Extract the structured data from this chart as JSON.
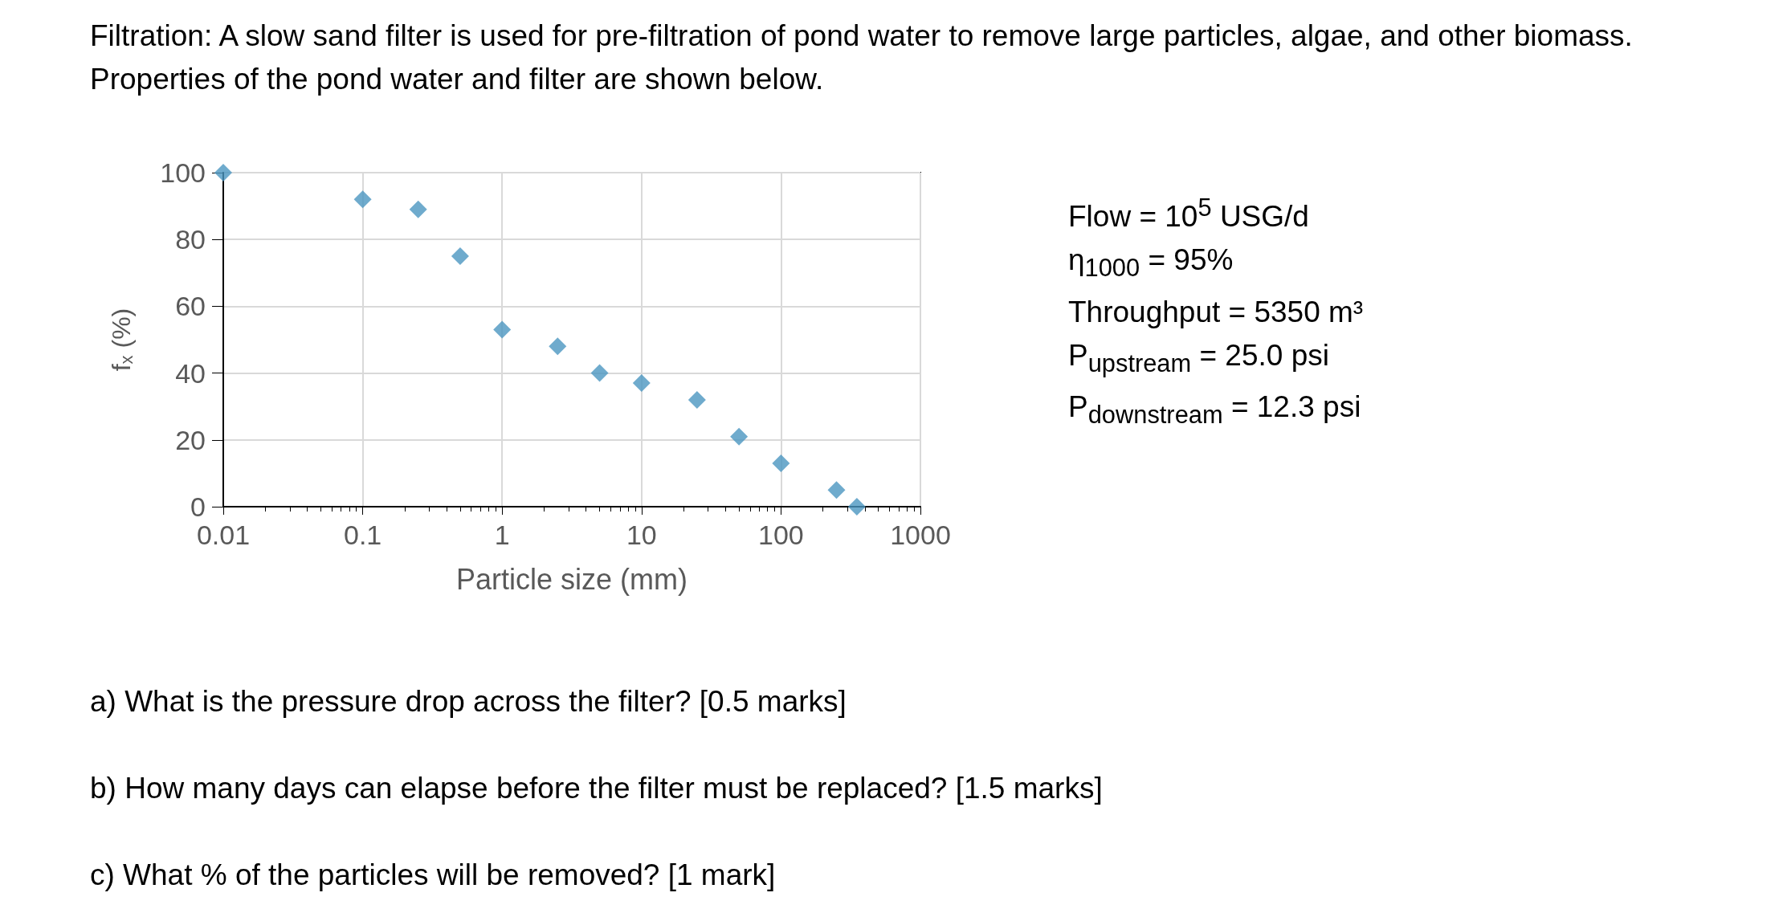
{
  "chart_data": {
    "type": "scatter",
    "title": "Filtration: A slow sand filter is used for pre-filtration of pond water to remove large particles, algae, and other biomass. Properties of the pond water and filter are shown below.",
    "xlabel": "Particle size (mm)",
    "ylabel": "f$_{x}$ (%)",
    "x": [
      0.01,
      0.1,
      0.25,
      0.5,
      1,
      2.5,
      5,
      10,
      25,
      50,
      100,
      250,
      350
    ],
    "series": [
      {
        "color": "#4b96c0",
        "values": [
          100,
          92,
          89,
          75,
          53,
          48,
          40,
          37,
          32,
          21,
          13,
          5,
          0
        ]
      }
    ],
    "log": "x",
    "xlim": [
      0.01,
      1000
    ],
    "xticks": [
      0.01,
      0.1,
      1,
      10,
      100,
      1000
    ],
    "ylim": [
      0,
      100
    ],
    "yticks": [
      0,
      20,
      40,
      60,
      80,
      100
    ],
    "grid": true,
    "marker": "diamond",
    "annotations": [
      "Flow = 10$^{5}$ USG/d",
      "η$_{1000}$ = 95%",
      "Throughput = 5350 m³",
      "P$_{upstream}$ = 25.0 psi",
      "P$_{downstream}$ = 12.3 psi",
      "a) What is the pressure drop across the filter? [0.5 marks]",
      "b) How many days can elapse before the filter must be replaced? [1.5 marks]",
      "c) What % of the particles will be removed? [1 mark]"
    ]
  }
}
